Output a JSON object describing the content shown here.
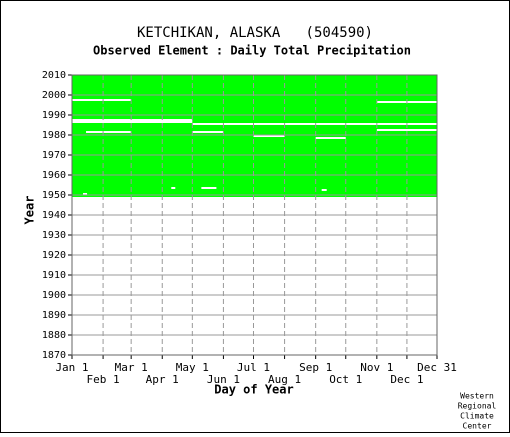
{
  "chart_data": {
    "type": "availability",
    "title": "KETCHIKAN, ALASKA   (504590)",
    "subtitle": "Observed Element : Daily Total Precipitation",
    "x_label": "Day of Year",
    "y_label": "Year",
    "footer": [
      "Western",
      "Regional",
      "Climate",
      "Center"
    ],
    "xlim": [
      1,
      365
    ],
    "xticks": [
      {
        "value": 1,
        "label": "Jan 1"
      },
      {
        "value": 32,
        "label": "Feb 1"
      },
      {
        "value": 60,
        "label": "Mar 1"
      },
      {
        "value": 91,
        "label": "Apr 1"
      },
      {
        "value": 121,
        "label": "May 1"
      },
      {
        "value": 152,
        "label": "Jun 1"
      },
      {
        "value": 182,
        "label": "Jul 1"
      },
      {
        "value": 213,
        "label": "Aug 1"
      },
      {
        "value": 244,
        "label": "Sep 1"
      },
      {
        "value": 274,
        "label": "Oct 1"
      },
      {
        "value": 305,
        "label": "Nov 1"
      },
      {
        "value": 335,
        "label": "Dec 1"
      },
      {
        "value": 365,
        "label": "Dec 31"
      }
    ],
    "ylim": [
      1870,
      2010
    ],
    "yticks": [
      1870,
      1880,
      1890,
      1900,
      1910,
      1920,
      1930,
      1940,
      1950,
      1960,
      1970,
      1980,
      1990,
      2000,
      2010
    ],
    "color": "#00ff00",
    "coverage": [
      1949,
      2010
    ],
    "gaps": [
      {
        "year": 1997,
        "days": [
          1,
          60
        ]
      },
      {
        "year": 1996,
        "days": [
          305,
          365
        ]
      },
      {
        "year": 1987,
        "days": [
          1,
          121
        ]
      },
      {
        "year": 1986,
        "days": [
          1,
          121
        ]
      },
      {
        "year": 1985,
        "days": [
          121,
          365
        ]
      },
      {
        "year": 1982,
        "days": [
          305,
          365
        ]
      },
      {
        "year": 1981,
        "days": [
          15,
          60
        ]
      },
      {
        "year": 1981,
        "days": [
          121,
          152
        ]
      },
      {
        "year": 1979,
        "days": [
          182,
          213
        ]
      },
      {
        "year": 1978,
        "days": [
          244,
          274
        ]
      },
      {
        "year": 1953,
        "days": [
          100,
          104
        ]
      },
      {
        "year": 1953,
        "days": [
          130,
          145
        ]
      },
      {
        "year": 1952,
        "days": [
          250,
          255
        ]
      },
      {
        "year": 1950,
        "days": [
          12,
          16
        ]
      }
    ]
  }
}
